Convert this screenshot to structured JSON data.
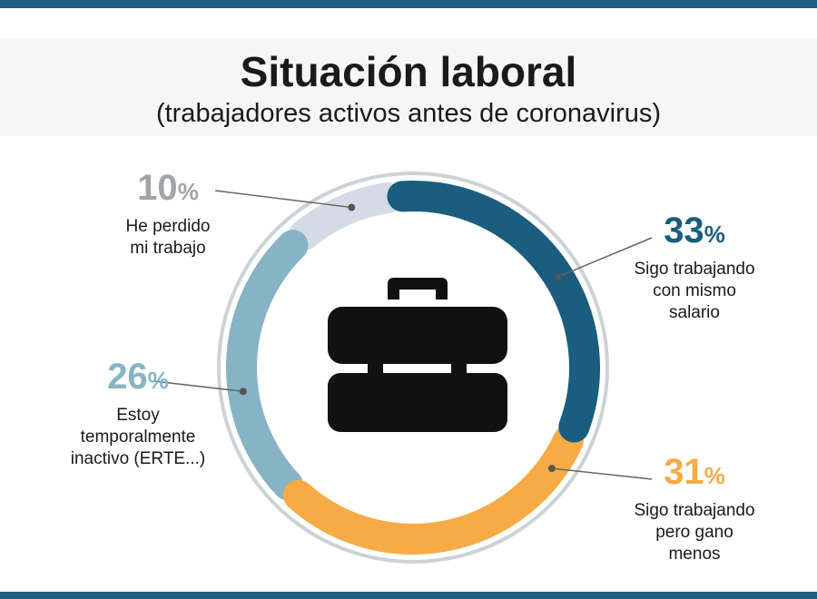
{
  "header": {
    "title": "Situación laboral",
    "subtitle": "(trabajadores activos antes de coronavirus)"
  },
  "icon": "briefcase-icon",
  "colors": {
    "frame": "#1d5f80",
    "ring_track": "#d0d6d8"
  },
  "chart_data": {
    "type": "pie",
    "style": "donut",
    "title": "Situación laboral",
    "subtitle": "(trabajadores activos antes de coronavirus)",
    "unit": "%",
    "slices": [
      {
        "label": "Sigo trabajando\ncon mismo\nsalario",
        "value": 33,
        "pct_text": "33",
        "color": "#1a5d7e"
      },
      {
        "label": "Sigo trabajando\npero gano\nmenos",
        "value": 31,
        "pct_text": "31",
        "color": "#f7ab45"
      },
      {
        "label": "Estoy\ntemporalmente\ninactivo (ERTE...)",
        "value": 26,
        "pct_text": "26",
        "color": "#86b4c6"
      },
      {
        "label": "He perdido\nmi trabajo",
        "value": 10,
        "pct_text": "10",
        "color": "#d4dbe6"
      }
    ],
    "pct_symbol": "%"
  }
}
